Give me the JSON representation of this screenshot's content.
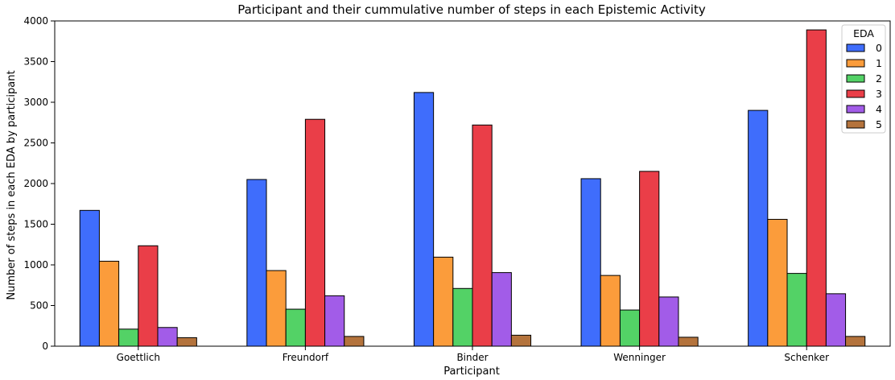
{
  "chart_data": {
    "type": "bar",
    "title": "Participant and their cummulative number of steps in each Epistemic Activity",
    "xlabel": "Participant",
    "ylabel": "Number of steps in each EDA by participant",
    "categories": [
      "Goettlich",
      "Freundorf",
      "Binder",
      "Wenninger",
      "Schenker"
    ],
    "ylim": [
      0,
      4000
    ],
    "yticks": [
      0,
      500,
      1000,
      1500,
      2000,
      2500,
      3000,
      3500,
      4000
    ],
    "grid": false,
    "legend": {
      "title": "EDA",
      "placement": "top-right"
    },
    "series": [
      {
        "name": "0",
        "color": "#3f6dfc",
        "values": [
          1670,
          2050,
          3120,
          2060,
          2900
        ]
      },
      {
        "name": "1",
        "color": "#fb9c3b",
        "values": [
          1045,
          930,
          1095,
          870,
          1560
        ]
      },
      {
        "name": "2",
        "color": "#53d266",
        "values": [
          210,
          455,
          710,
          445,
          895
        ]
      },
      {
        "name": "3",
        "color": "#ea3e48",
        "values": [
          1235,
          2790,
          2720,
          2150,
          3890
        ]
      },
      {
        "name": "4",
        "color": "#a25ce8",
        "values": [
          230,
          620,
          905,
          605,
          645
        ]
      },
      {
        "name": "5",
        "color": "#b4733c",
        "values": [
          105,
          120,
          135,
          110,
          120
        ]
      }
    ]
  }
}
